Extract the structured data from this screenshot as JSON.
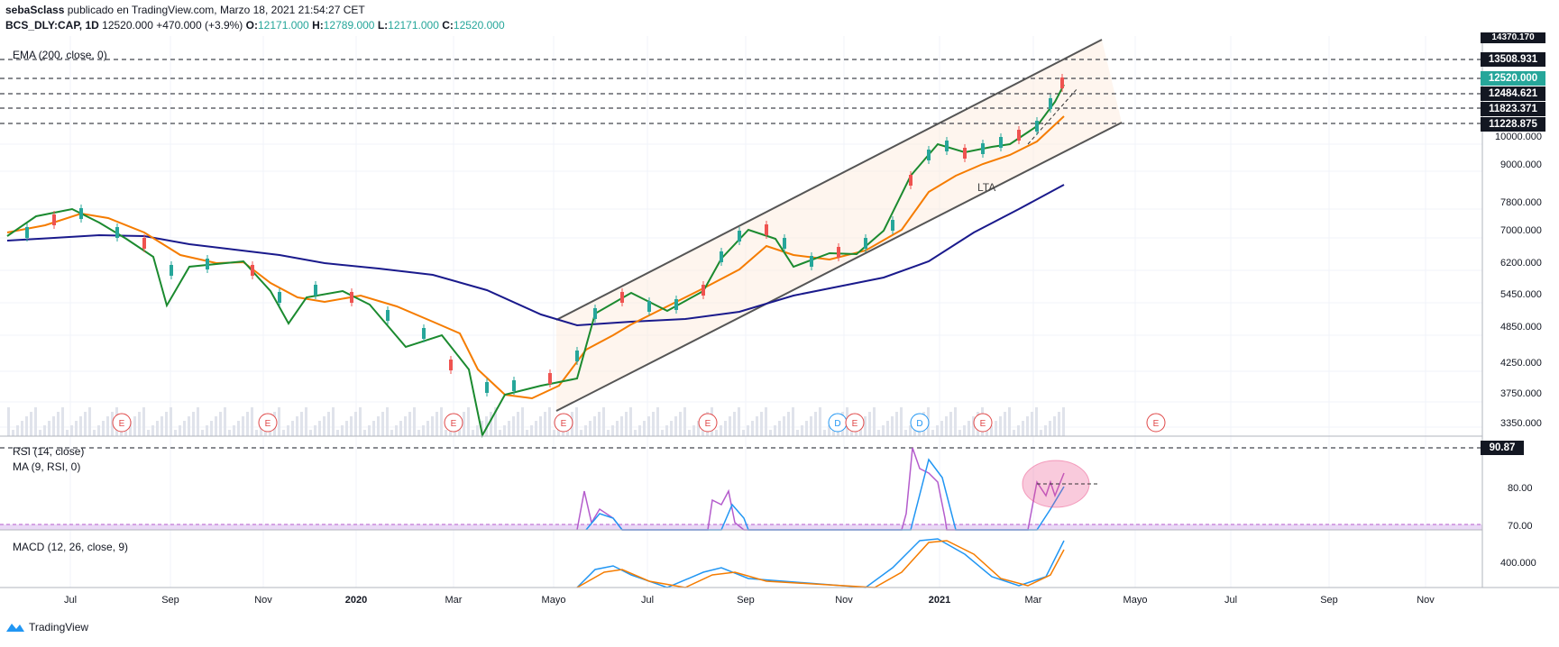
{
  "header": {
    "author": "sebaSclass",
    "published": "publicado en TradingView.com, Marzo 18, 2021 21:54:27 CET",
    "symbol": "BCS_DLY:CAP, 1D",
    "last": "12520.000",
    "change": "+470.000 (+3.9%)",
    "o_label": "O:",
    "o": "12171.000",
    "h_label": "H:",
    "h": "12789.000",
    "l_label": "L:",
    "l": "12171.000",
    "c_label": "C:",
    "c": "12520.000"
  },
  "indicators": {
    "ema": "EMA (200, close, 0)",
    "rsi": "RSI (14, close)",
    "ma": "MA (9, RSI, 0)",
    "macd": "MACD (12, 26, close, 9)"
  },
  "annotations": {
    "lta": "LTA",
    "earnings": "E",
    "dividend": "D"
  },
  "price_axis": {
    "top_partial": "14370.170",
    "ticks": [
      "10000.000",
      "9000.000",
      "7800.000",
      "7000.000",
      "6200.000",
      "5450.000",
      "4850.000",
      "4250.000",
      "3750.000",
      "3350.000"
    ],
    "badges": [
      {
        "value": "13508.931",
        "color": "#131722"
      },
      {
        "value": "12520.000",
        "color": "#26a69a"
      },
      {
        "value": "12484.621",
        "color": "#131722"
      },
      {
        "value": "11823.371",
        "color": "#131722"
      },
      {
        "value": "11228.875",
        "color": "#131722"
      }
    ]
  },
  "rsi_axis": {
    "badge": "90.87",
    "ticks": [
      "80.00",
      "70.00"
    ]
  },
  "macd_axis": {
    "ticks": [
      "400.000"
    ]
  },
  "time_axis": [
    {
      "label": "Jul",
      "bold": false
    },
    {
      "label": "Sep",
      "bold": false
    },
    {
      "label": "Nov",
      "bold": false
    },
    {
      "label": "2020",
      "bold": true
    },
    {
      "label": "Mar",
      "bold": false
    },
    {
      "label": "Mayo",
      "bold": false
    },
    {
      "label": "Jul",
      "bold": false
    },
    {
      "label": "Sep",
      "bold": false
    },
    {
      "label": "Nov",
      "bold": false
    },
    {
      "label": "2021",
      "bold": true
    },
    {
      "label": "Mar",
      "bold": false
    },
    {
      "label": "Mayo",
      "bold": false
    },
    {
      "label": "Jul",
      "bold": false
    },
    {
      "label": "Sep",
      "bold": false
    },
    {
      "label": "Nov",
      "bold": false
    }
  ],
  "footer": {
    "brand": "TradingView"
  },
  "colors": {
    "ema200": "#1a1a8c",
    "ema_fast": "#f57c00",
    "ema_short": "#1b8a2f",
    "up": "#26a69a",
    "down": "#ef5350",
    "rsi": "#b45ccc",
    "rsi_ma": "#2196f3",
    "macd": "#2196f3",
    "signal": "#f57c00",
    "earnings": "#e04848",
    "dividend": "#2196f3"
  }
}
